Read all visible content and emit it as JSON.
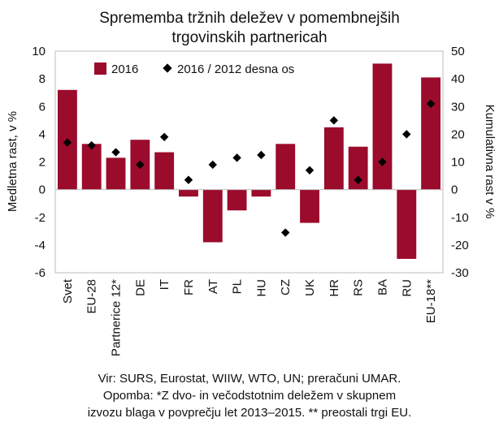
{
  "chart_data": {
    "type": "bar",
    "title_lines": [
      "Sprememba tržnih deležev v pomembnejših",
      "trgovinskih partnericah"
    ],
    "ylabel": "Medletna rast, v %",
    "y2label": "Kumulativna rast v %",
    "ylim": [
      -6,
      10
    ],
    "y2lim": [
      -30,
      50
    ],
    "yticks": [
      "10",
      "8",
      "6",
      "4",
      "2",
      "0",
      "-2",
      "-4",
      "-6"
    ],
    "y2ticks": [
      "50",
      "40",
      "30",
      "20",
      "10",
      "0",
      "-10",
      "-20",
      "-30"
    ],
    "categories": [
      "Svet",
      "EU-28",
      "Partnerice 12*",
      "DE",
      "IT",
      "FR",
      "AT",
      "PL",
      "HU",
      "CZ",
      "UK",
      "HR",
      "RS",
      "BA",
      "RU",
      "EU-18**"
    ],
    "series": [
      {
        "name": "2016",
        "type": "bar",
        "axis": "left",
        "color": "#9b0b2c",
        "values": [
          7.2,
          3.3,
          2.3,
          3.6,
          2.7,
          -0.5,
          -3.8,
          -1.5,
          -0.5,
          3.3,
          -2.4,
          4.5,
          3.1,
          9.1,
          -5.0,
          8.1
        ]
      },
      {
        "name": "2016 / 2012 desna os",
        "type": "scatter",
        "axis": "right",
        "color": "#000000",
        "values": [
          17,
          16,
          13.5,
          9,
          19,
          3.5,
          9,
          11.5,
          12.5,
          -15.5,
          7,
          25,
          3.5,
          10,
          20,
          31
        ]
      }
    ],
    "grid": false,
    "legend_position": "top-left"
  },
  "footer": {
    "source": "Vir: SURS, Eurostat, WIIW, WTO, UN; preračuni UMAR.",
    "note_line1": "Opomba: *Z dvo- in večodstotnim deležem v skupnem",
    "note_line2": "izvozu blaga v povprečju let 2013–2015. ** preostali trgi EU."
  }
}
